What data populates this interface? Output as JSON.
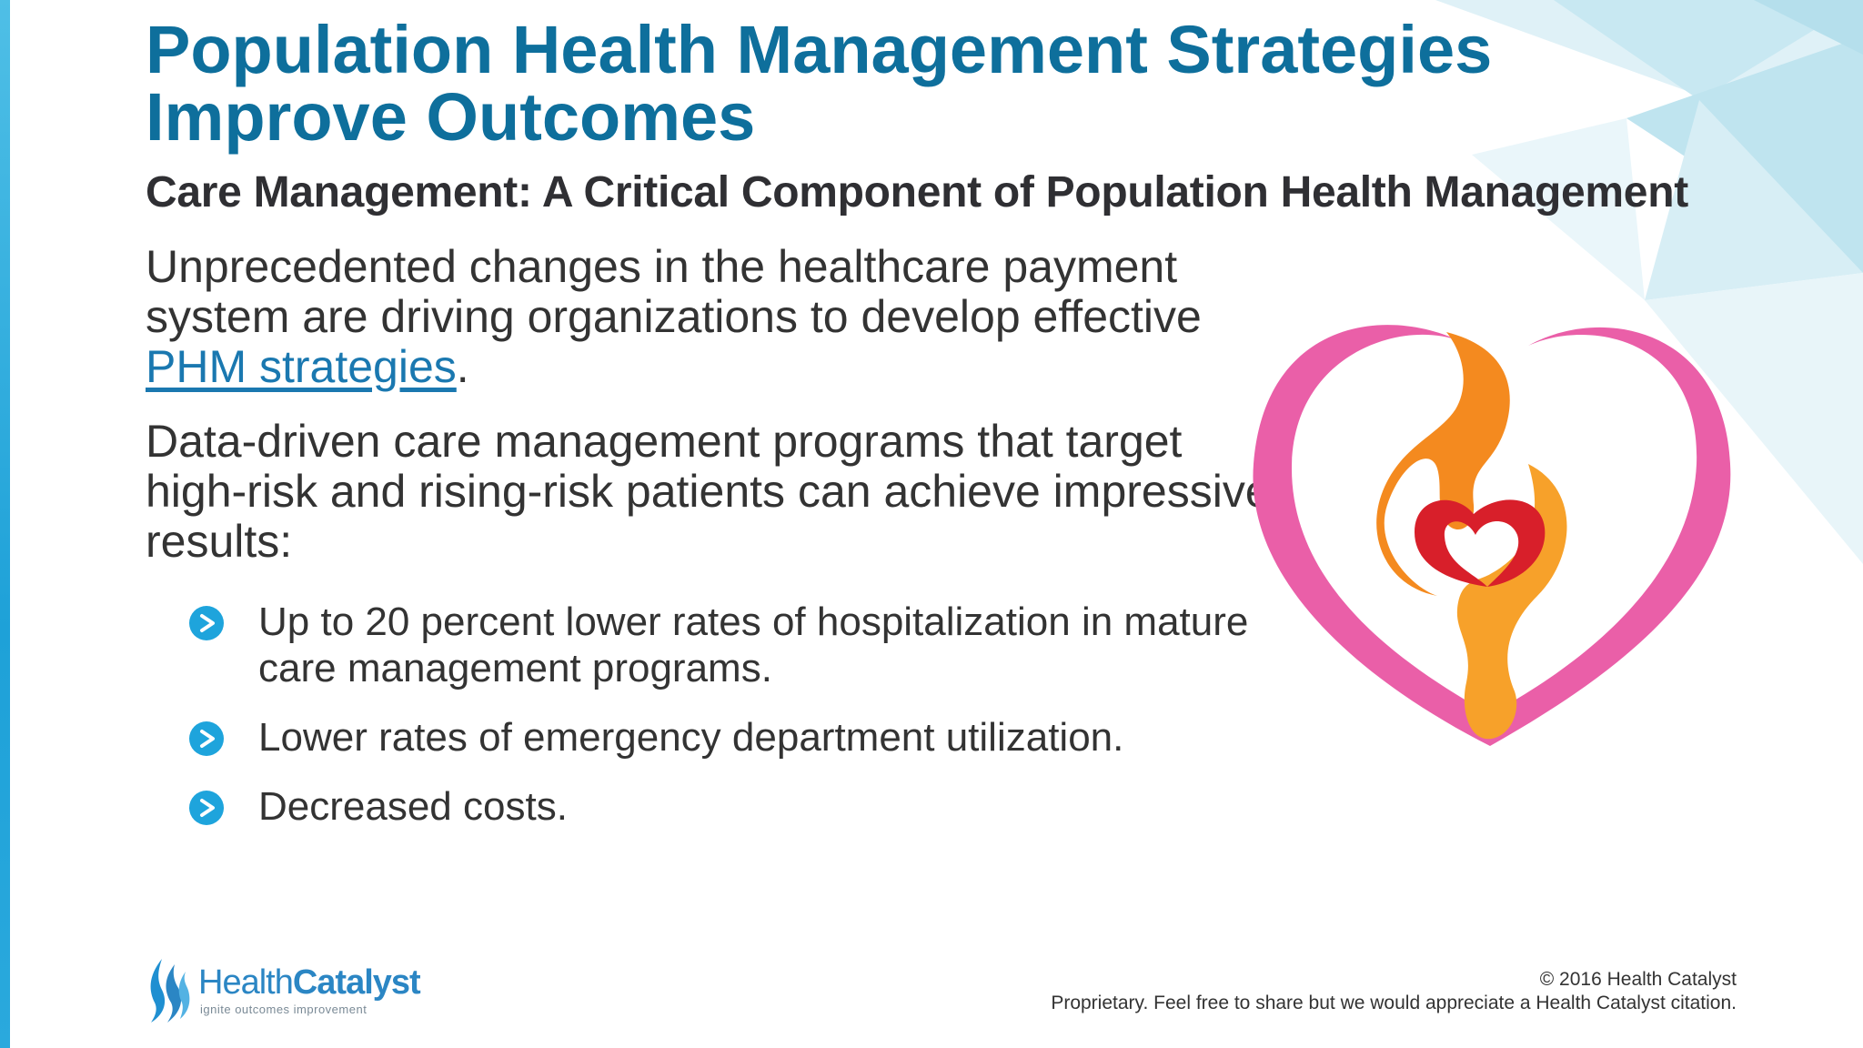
{
  "slide": {
    "title": "Population Health Management Strategies Improve Outcomes",
    "subtitle": "Care Management: A Critical Component of Population Health Management",
    "paragraph1_text": "Unprecedented changes in the healthcare payment system are driving organizations to develop effective ",
    "paragraph1_link": "PHM strategies",
    "paragraph1_end": ".",
    "paragraph2": "Data-driven care management programs that target high-risk and rising-risk patients can achieve impressive results:",
    "bullets": [
      "Up to 20 percent lower rates of hospitalization in mature care management programs.",
      "Lower rates of emergency department utilization.",
      "Decreased costs."
    ]
  },
  "logo": {
    "name_part1": "Health",
    "name_part2": "Catalyst",
    "tagline": "ignite outcomes improvement"
  },
  "footer": {
    "copyright": "© 2016 Health Catalyst",
    "notice": "Proprietary. Feel free to share but we would appreciate a Health Catalyst citation."
  },
  "colors": {
    "title": "#0e6f9c",
    "accent": "#1ea4dc",
    "heart_pink": "#ea5fa8",
    "heart_orange": "#f48a1f",
    "heart_red": "#d81f2a"
  },
  "icons": {
    "bullet": "chevron-right-circle-icon",
    "logo": "flame-logo-icon",
    "illustration": "heart-hands-icon"
  }
}
